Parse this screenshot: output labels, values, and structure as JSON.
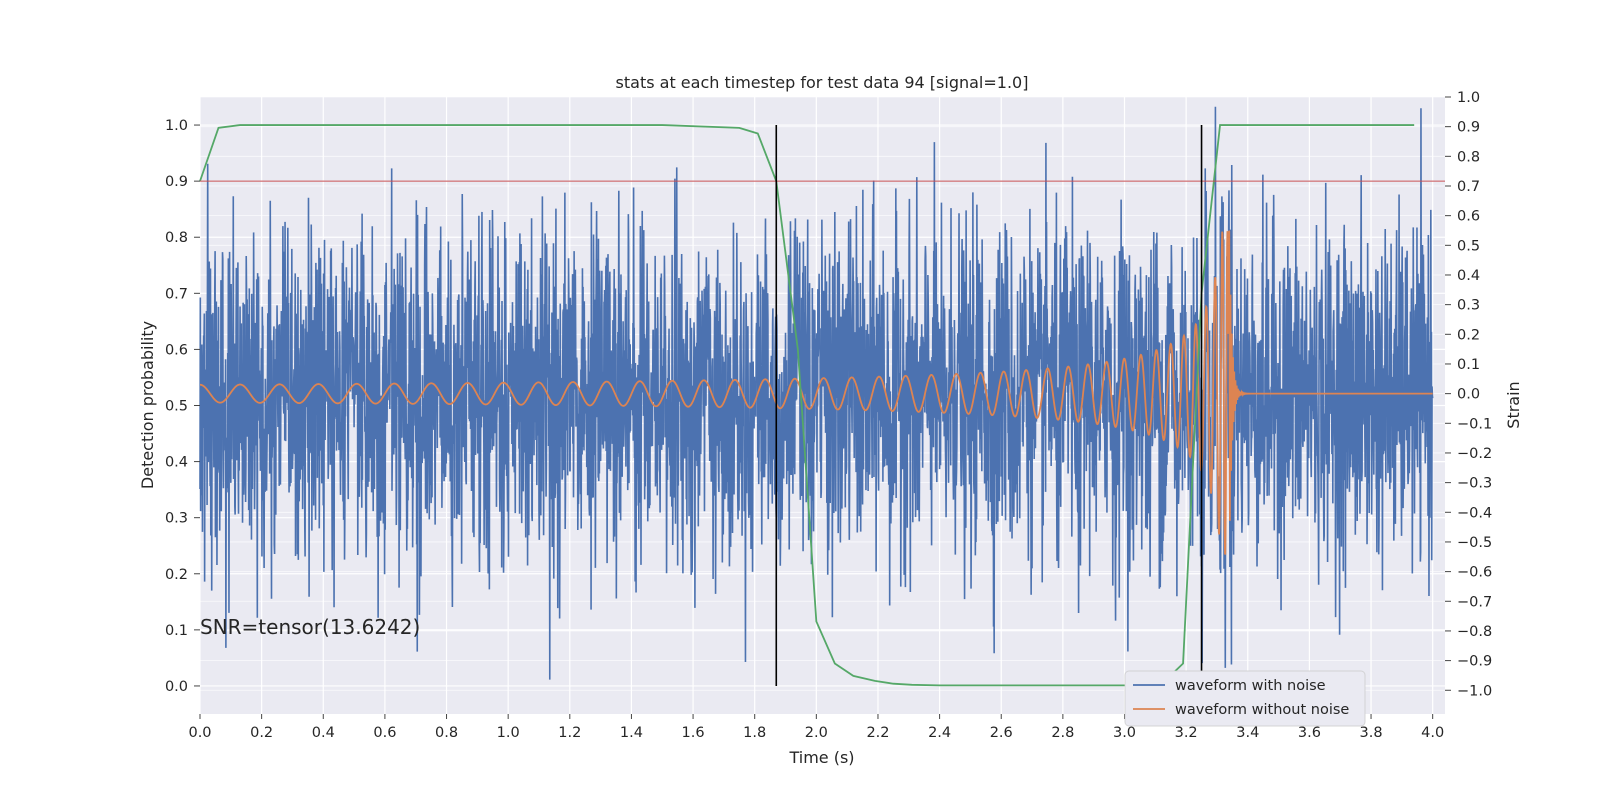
{
  "chart_data": {
    "type": "line",
    "title": "stats at each timestep for test data 94 [signal=1.0]",
    "xlabel": "Time (s)",
    "ylabel": "Detection probability",
    "y2label": "Strain",
    "xlim": [
      0.0,
      4.04
    ],
    "ylim": [
      -0.05,
      1.05
    ],
    "y2lim": [
      -1.08,
      1.0
    ],
    "x_ticks": [
      0.0,
      0.2,
      0.4,
      0.6,
      0.8,
      1.0,
      1.2,
      1.4,
      1.6,
      1.8,
      2.0,
      2.2,
      2.4,
      2.6,
      2.8,
      3.0,
      3.2,
      3.4,
      3.6,
      3.8,
      4.0
    ],
    "x_tick_labels": [
      "0.0",
      "0.2",
      "0.4",
      "0.6",
      "0.8",
      "1.0",
      "1.2",
      "1.4",
      "1.6",
      "1.8",
      "2.0",
      "2.2",
      "2.4",
      "2.6",
      "2.8",
      "3.0",
      "3.2",
      "3.4",
      "3.6",
      "3.8",
      "4.0"
    ],
    "y_ticks": [
      0.0,
      0.1,
      0.2,
      0.3,
      0.4,
      0.5,
      0.6,
      0.7,
      0.8,
      0.9,
      1.0
    ],
    "y_tick_labels": [
      "0.0",
      "0.1",
      "0.2",
      "0.3",
      "0.4",
      "0.5",
      "0.6",
      "0.7",
      "0.8",
      "0.9",
      "1.0"
    ],
    "y2_ticks": [
      -1.0,
      -0.9,
      -0.8,
      -0.7,
      -0.6,
      -0.5,
      -0.4,
      -0.3,
      -0.2,
      -0.1,
      0.0,
      0.1,
      0.2,
      0.3,
      0.4,
      0.5,
      0.6,
      0.7,
      0.8,
      0.9,
      1.0
    ],
    "y2_tick_labels": [
      "−1.0",
      "−0.9",
      "−0.8",
      "−0.7",
      "−0.6",
      "−0.5",
      "−0.4",
      "−0.3",
      "−0.2",
      "−0.1",
      "0.0",
      "0.1",
      "0.2",
      "0.3",
      "0.4",
      "0.5",
      "0.6",
      "0.7",
      "0.8",
      "0.9",
      "1.0"
    ],
    "grid": true,
    "legend_position": "bottom-right",
    "annotation": "SNR=tensor(13.6242)",
    "threshold": {
      "y": 0.9,
      "color": "#c44e52"
    },
    "vertical_lines": [
      1.87,
      3.25
    ],
    "detection_probability": {
      "color": "#55a868",
      "x": [
        0.0,
        0.06,
        0.13,
        0.5,
        1.0,
        1.5,
        1.75,
        1.81,
        1.87,
        1.94,
        2.0,
        2.06,
        2.12,
        2.19,
        2.25,
        2.31,
        2.4,
        2.6,
        2.8,
        3.0,
        3.12,
        3.19,
        3.25,
        3.31,
        3.5,
        3.8,
        3.94
      ],
      "y": [
        0.9,
        0.995,
        1.0,
        1.0,
        1.0,
        1.0,
        0.995,
        0.985,
        0.9,
        0.6,
        0.115,
        0.04,
        0.018,
        0.009,
        0.004,
        0.002,
        0.001,
        0.001,
        0.001,
        0.001,
        0.003,
        0.04,
        0.7,
        1.0,
        1.0,
        1.0,
        1.0
      ]
    },
    "series": [
      {
        "name": "waveform with noise",
        "color": "#4c72b0",
        "x_range": [
          0.0,
          4.0
        ],
        "noise_std": 0.27,
        "peak_max": 1.0,
        "peak_min": -0.97
      },
      {
        "name": "waveform without noise",
        "color": "#dd8452",
        "x_range": [
          0.0,
          4.0
        ],
        "merger_time": 3.34,
        "amplitude_start": 0.03,
        "amplitude_peak": 0.55
      }
    ]
  }
}
